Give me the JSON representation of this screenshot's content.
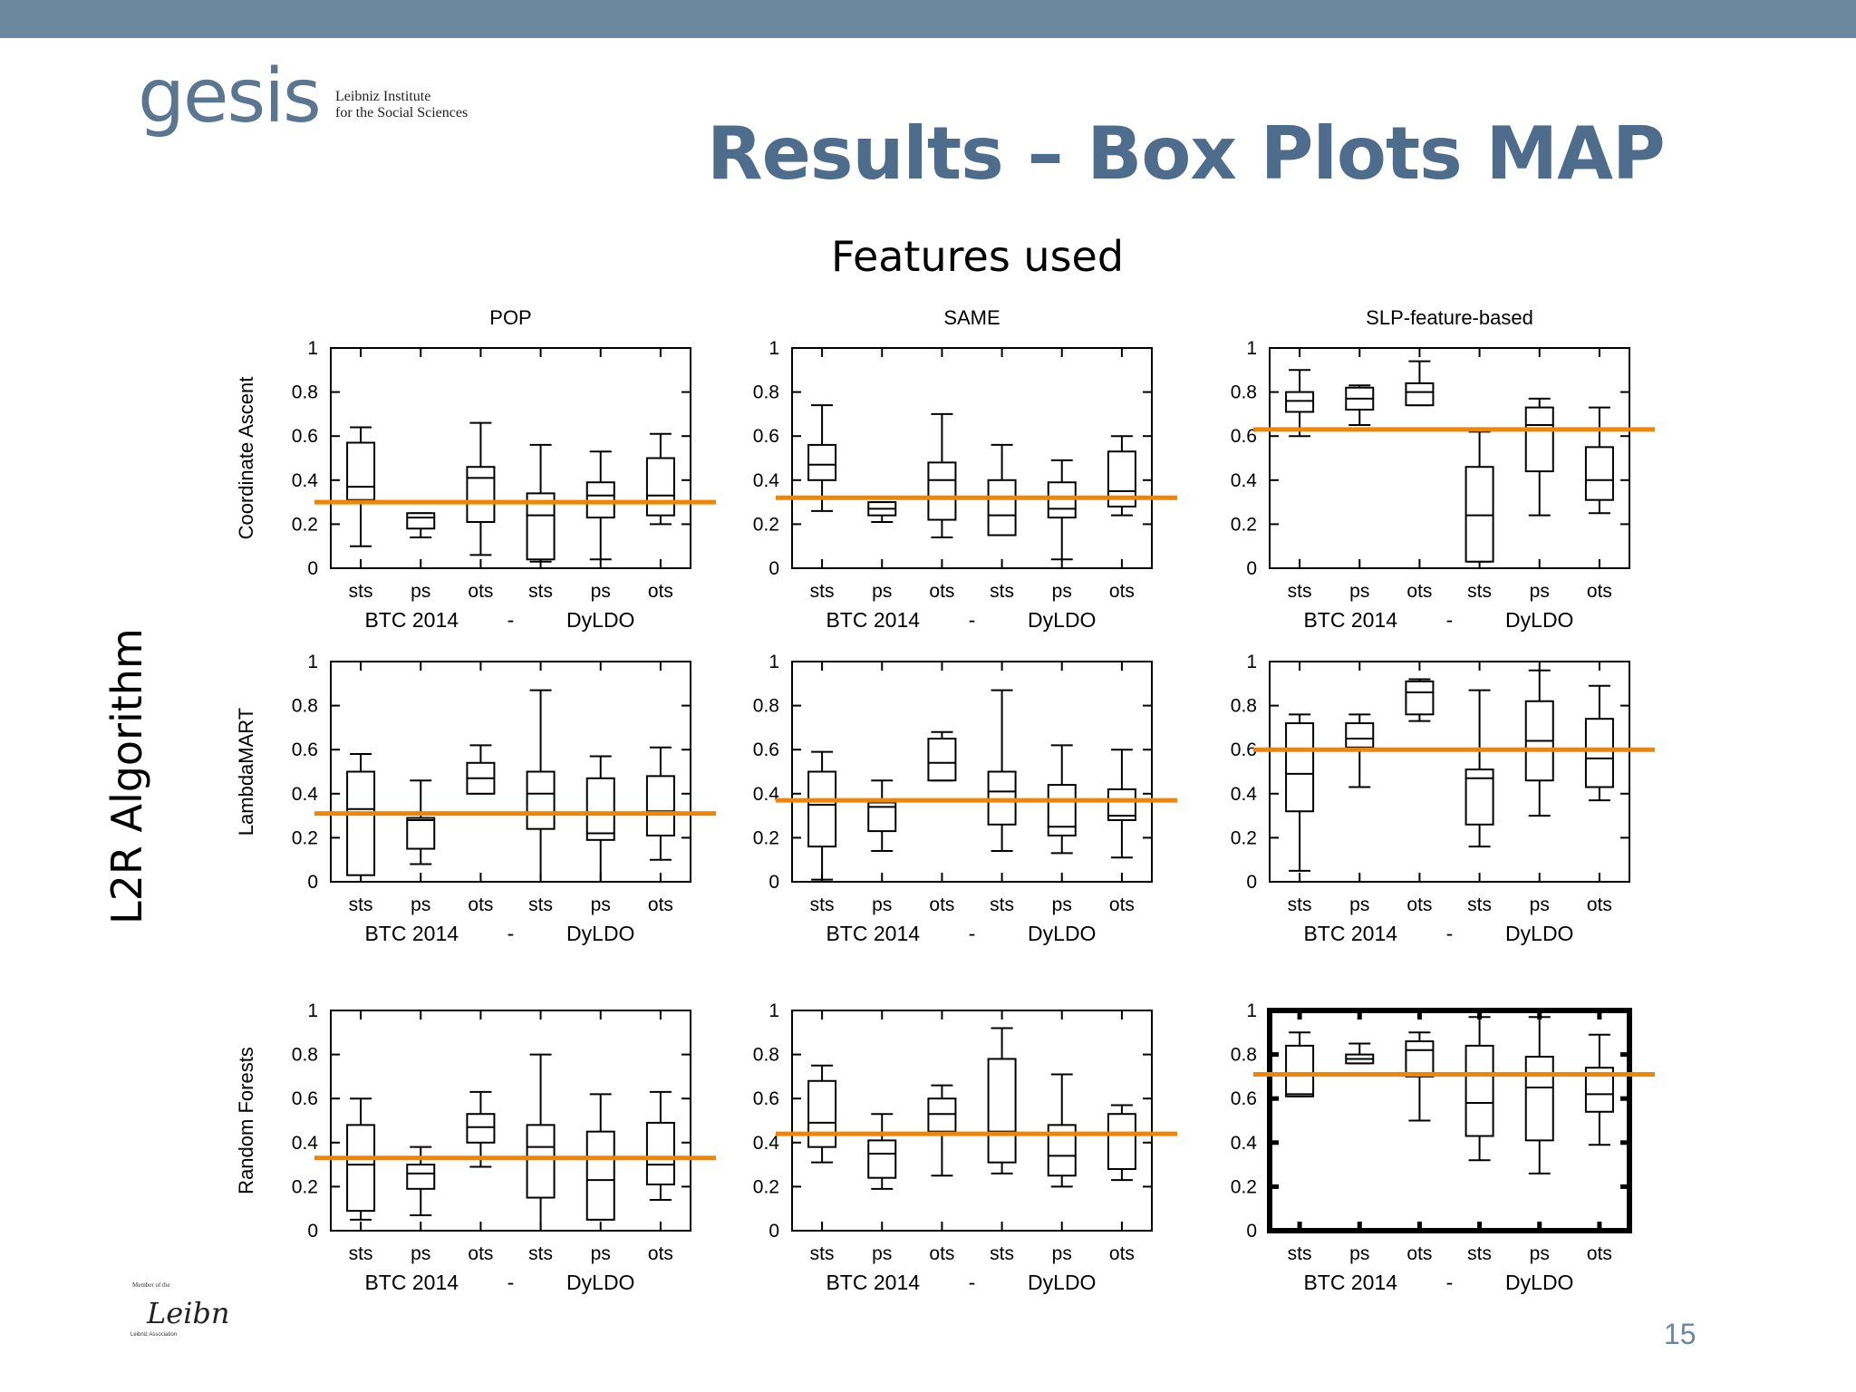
{
  "slide": {
    "title": "Results – Box Plots MAP",
    "columns_heading": "Features used",
    "rows_heading": "L2R Algorithm",
    "page_number": "15",
    "logo": {
      "word": "gesis",
      "line1": "Leibniz Institute",
      "line2": "for the Social Sciences"
    },
    "footer_logo_text": [
      "Member of the",
      "Leibniz",
      "Leibniz Association"
    ]
  },
  "colors": {
    "top_bar": "#6b879f",
    "title": "#4e6d8c",
    "baseline": "#f28500",
    "box": "#000000"
  },
  "chart_data": {
    "type": "boxplot",
    "columns": [
      "POP",
      "SAME",
      "SLP-feature-based"
    ],
    "rows": [
      "Coordinate Ascent",
      "LambdaMART",
      "Random Forests"
    ],
    "categories": [
      "sts",
      "ps",
      "ots",
      "sts",
      "ps",
      "ots"
    ],
    "groups": [
      "BTC 2014",
      "-",
      "DyLDO"
    ],
    "ylim": [
      0,
      1
    ],
    "yticks": [
      "0",
      "0.2",
      "0.4",
      "0.6",
      "0.8",
      "1"
    ],
    "highlighted_panel": "Random Forests / SLP-feature-based",
    "panels": [
      {
        "row": "Coordinate Ascent",
        "column": "POP",
        "baseline": 0.3,
        "boxes": [
          {
            "category": "sts",
            "min": 0.1,
            "q1": 0.31,
            "median": 0.37,
            "q3": 0.57,
            "max": 0.64
          },
          {
            "category": "ps",
            "min": 0.14,
            "q1": 0.18,
            "median": 0.23,
            "q3": 0.25,
            "max": 0.25
          },
          {
            "category": "ots",
            "min": 0.06,
            "q1": 0.21,
            "median": 0.41,
            "q3": 0.46,
            "max": 0.66
          },
          {
            "category": "sts",
            "min": 0.03,
            "q1": 0.04,
            "median": 0.24,
            "q3": 0.34,
            "max": 0.56
          },
          {
            "category": "ps",
            "min": 0.04,
            "q1": 0.23,
            "median": 0.33,
            "q3": 0.39,
            "max": 0.53
          },
          {
            "category": "ots",
            "min": 0.2,
            "q1": 0.24,
            "median": 0.33,
            "q3": 0.5,
            "max": 0.61
          }
        ]
      },
      {
        "row": "Coordinate Ascent",
        "column": "SAME",
        "baseline": 0.32,
        "boxes": [
          {
            "category": "sts",
            "min": 0.26,
            "q1": 0.4,
            "median": 0.47,
            "q3": 0.56,
            "max": 0.74
          },
          {
            "category": "ps",
            "min": 0.21,
            "q1": 0.24,
            "median": 0.27,
            "q3": 0.3,
            "max": 0.3
          },
          {
            "category": "ots",
            "min": 0.14,
            "q1": 0.22,
            "median": 0.4,
            "q3": 0.48,
            "max": 0.7
          },
          {
            "category": "sts",
            "min": 0.15,
            "q1": 0.15,
            "median": 0.24,
            "q3": 0.4,
            "max": 0.56
          },
          {
            "category": "ps",
            "min": 0.04,
            "q1": 0.23,
            "median": 0.27,
            "q3": 0.39,
            "max": 0.49
          },
          {
            "category": "ots",
            "min": 0.24,
            "q1": 0.28,
            "median": 0.35,
            "q3": 0.53,
            "max": 0.6
          }
        ]
      },
      {
        "row": "Coordinate Ascent",
        "column": "SLP-feature-based",
        "baseline": 0.63,
        "boxes": [
          {
            "category": "sts",
            "min": 0.6,
            "q1": 0.71,
            "median": 0.76,
            "q3": 0.8,
            "max": 0.9
          },
          {
            "category": "ps",
            "min": 0.65,
            "q1": 0.72,
            "median": 0.77,
            "q3": 0.82,
            "max": 0.83
          },
          {
            "category": "ots",
            "min": 0.74,
            "q1": 0.74,
            "median": 0.8,
            "q3": 0.84,
            "max": 0.94
          },
          {
            "category": "sts",
            "min": 0.03,
            "q1": 0.03,
            "median": 0.24,
            "q3": 0.46,
            "max": 0.62
          },
          {
            "category": "ps",
            "min": 0.24,
            "q1": 0.44,
            "median": 0.65,
            "q3": 0.73,
            "max": 0.77
          },
          {
            "category": "ots",
            "min": 0.25,
            "q1": 0.31,
            "median": 0.4,
            "q3": 0.55,
            "max": 0.73
          }
        ]
      },
      {
        "row": "LambdaMART",
        "column": "POP",
        "baseline": 0.31,
        "boxes": [
          {
            "category": "sts",
            "min": 0.0,
            "q1": 0.03,
            "median": 0.33,
            "q3": 0.5,
            "max": 0.58
          },
          {
            "category": "ps",
            "min": 0.08,
            "q1": 0.15,
            "median": 0.28,
            "q3": 0.29,
            "max": 0.46
          },
          {
            "category": "ots",
            "min": 0.4,
            "q1": 0.4,
            "median": 0.47,
            "q3": 0.54,
            "max": 0.62
          },
          {
            "category": "sts",
            "min": 0.0,
            "q1": 0.24,
            "median": 0.4,
            "q3": 0.5,
            "max": 0.87
          },
          {
            "category": "ps",
            "min": 0.0,
            "q1": 0.19,
            "median": 0.22,
            "q3": 0.47,
            "max": 0.57
          },
          {
            "category": "ots",
            "min": 0.1,
            "q1": 0.21,
            "median": 0.32,
            "q3": 0.48,
            "max": 0.61
          }
        ]
      },
      {
        "row": "LambdaMART",
        "column": "SAME",
        "baseline": 0.37,
        "boxes": [
          {
            "category": "sts",
            "min": 0.01,
            "q1": 0.16,
            "median": 0.35,
            "q3": 0.5,
            "max": 0.59
          },
          {
            "category": "ps",
            "min": 0.14,
            "q1": 0.23,
            "median": 0.34,
            "q3": 0.36,
            "max": 0.46
          },
          {
            "category": "ots",
            "min": 0.46,
            "q1": 0.46,
            "median": 0.54,
            "q3": 0.65,
            "max": 0.68
          },
          {
            "category": "sts",
            "min": 0.14,
            "q1": 0.26,
            "median": 0.41,
            "q3": 0.5,
            "max": 0.87
          },
          {
            "category": "ps",
            "min": 0.13,
            "q1": 0.21,
            "median": 0.25,
            "q3": 0.44,
            "max": 0.62
          },
          {
            "category": "ots",
            "min": 0.11,
            "q1": 0.28,
            "median": 0.3,
            "q3": 0.42,
            "max": 0.6
          }
        ]
      },
      {
        "row": "LambdaMART",
        "column": "SLP-feature-based",
        "baseline": 0.6,
        "boxes": [
          {
            "category": "sts",
            "min": 0.05,
            "q1": 0.32,
            "median": 0.49,
            "q3": 0.72,
            "max": 0.76
          },
          {
            "category": "ps",
            "min": 0.43,
            "q1": 0.61,
            "median": 0.65,
            "q3": 0.72,
            "max": 0.76
          },
          {
            "category": "ots",
            "min": 0.73,
            "q1": 0.76,
            "median": 0.86,
            "q3": 0.91,
            "max": 0.92
          },
          {
            "category": "sts",
            "min": 0.16,
            "q1": 0.26,
            "median": 0.47,
            "q3": 0.51,
            "max": 0.87
          },
          {
            "category": "ps",
            "min": 0.3,
            "q1": 0.46,
            "median": 0.64,
            "q3": 0.82,
            "max": 0.96
          },
          {
            "category": "ots",
            "min": 0.37,
            "q1": 0.43,
            "median": 0.56,
            "q3": 0.74,
            "max": 0.89
          }
        ]
      },
      {
        "row": "Random Forests",
        "column": "POP",
        "baseline": 0.33,
        "boxes": [
          {
            "category": "sts",
            "min": 0.05,
            "q1": 0.09,
            "median": 0.3,
            "q3": 0.48,
            "max": 0.6
          },
          {
            "category": "ps",
            "min": 0.07,
            "q1": 0.19,
            "median": 0.26,
            "q3": 0.3,
            "max": 0.38
          },
          {
            "category": "ots",
            "min": 0.29,
            "q1": 0.4,
            "median": 0.47,
            "q3": 0.53,
            "max": 0.63
          },
          {
            "category": "sts",
            "min": 0.0,
            "q1": 0.15,
            "median": 0.38,
            "q3": 0.48,
            "max": 0.8
          },
          {
            "category": "ps",
            "min": 0.05,
            "q1": 0.05,
            "median": 0.23,
            "q3": 0.45,
            "max": 0.62
          },
          {
            "category": "ots",
            "min": 0.14,
            "q1": 0.21,
            "median": 0.3,
            "q3": 0.49,
            "max": 0.63
          }
        ]
      },
      {
        "row": "Random Forests",
        "column": "SAME",
        "baseline": 0.44,
        "boxes": [
          {
            "category": "sts",
            "min": 0.31,
            "q1": 0.38,
            "median": 0.49,
            "q3": 0.68,
            "max": 0.75
          },
          {
            "category": "ps",
            "min": 0.19,
            "q1": 0.24,
            "median": 0.35,
            "q3": 0.41,
            "max": 0.53
          },
          {
            "category": "ots",
            "min": 0.25,
            "q1": 0.45,
            "median": 0.53,
            "q3": 0.6,
            "max": 0.66
          },
          {
            "category": "sts",
            "min": 0.26,
            "q1": 0.31,
            "median": 0.45,
            "q3": 0.78,
            "max": 0.92
          },
          {
            "category": "ps",
            "min": 0.2,
            "q1": 0.25,
            "median": 0.34,
            "q3": 0.48,
            "max": 0.71
          },
          {
            "category": "ots",
            "min": 0.23,
            "q1": 0.28,
            "median": 0.44,
            "q3": 0.53,
            "max": 0.57
          }
        ]
      },
      {
        "row": "Random Forests",
        "column": "SLP-feature-based",
        "baseline": 0.71,
        "boxes": [
          {
            "category": "sts",
            "min": 0.61,
            "q1": 0.61,
            "median": 0.62,
            "q3": 0.84,
            "max": 0.9
          },
          {
            "category": "ps",
            "min": 0.76,
            "q1": 0.76,
            "median": 0.78,
            "q3": 0.8,
            "max": 0.85
          },
          {
            "category": "ots",
            "min": 0.5,
            "q1": 0.7,
            "median": 0.82,
            "q3": 0.86,
            "max": 0.9
          },
          {
            "category": "sts",
            "min": 0.32,
            "q1": 0.43,
            "median": 0.58,
            "q3": 0.84,
            "max": 0.97
          },
          {
            "category": "ps",
            "min": 0.26,
            "q1": 0.41,
            "median": 0.65,
            "q3": 0.79,
            "max": 0.97
          },
          {
            "category": "ots",
            "min": 0.39,
            "q1": 0.54,
            "median": 0.62,
            "q3": 0.74,
            "max": 0.89
          }
        ]
      }
    ]
  }
}
